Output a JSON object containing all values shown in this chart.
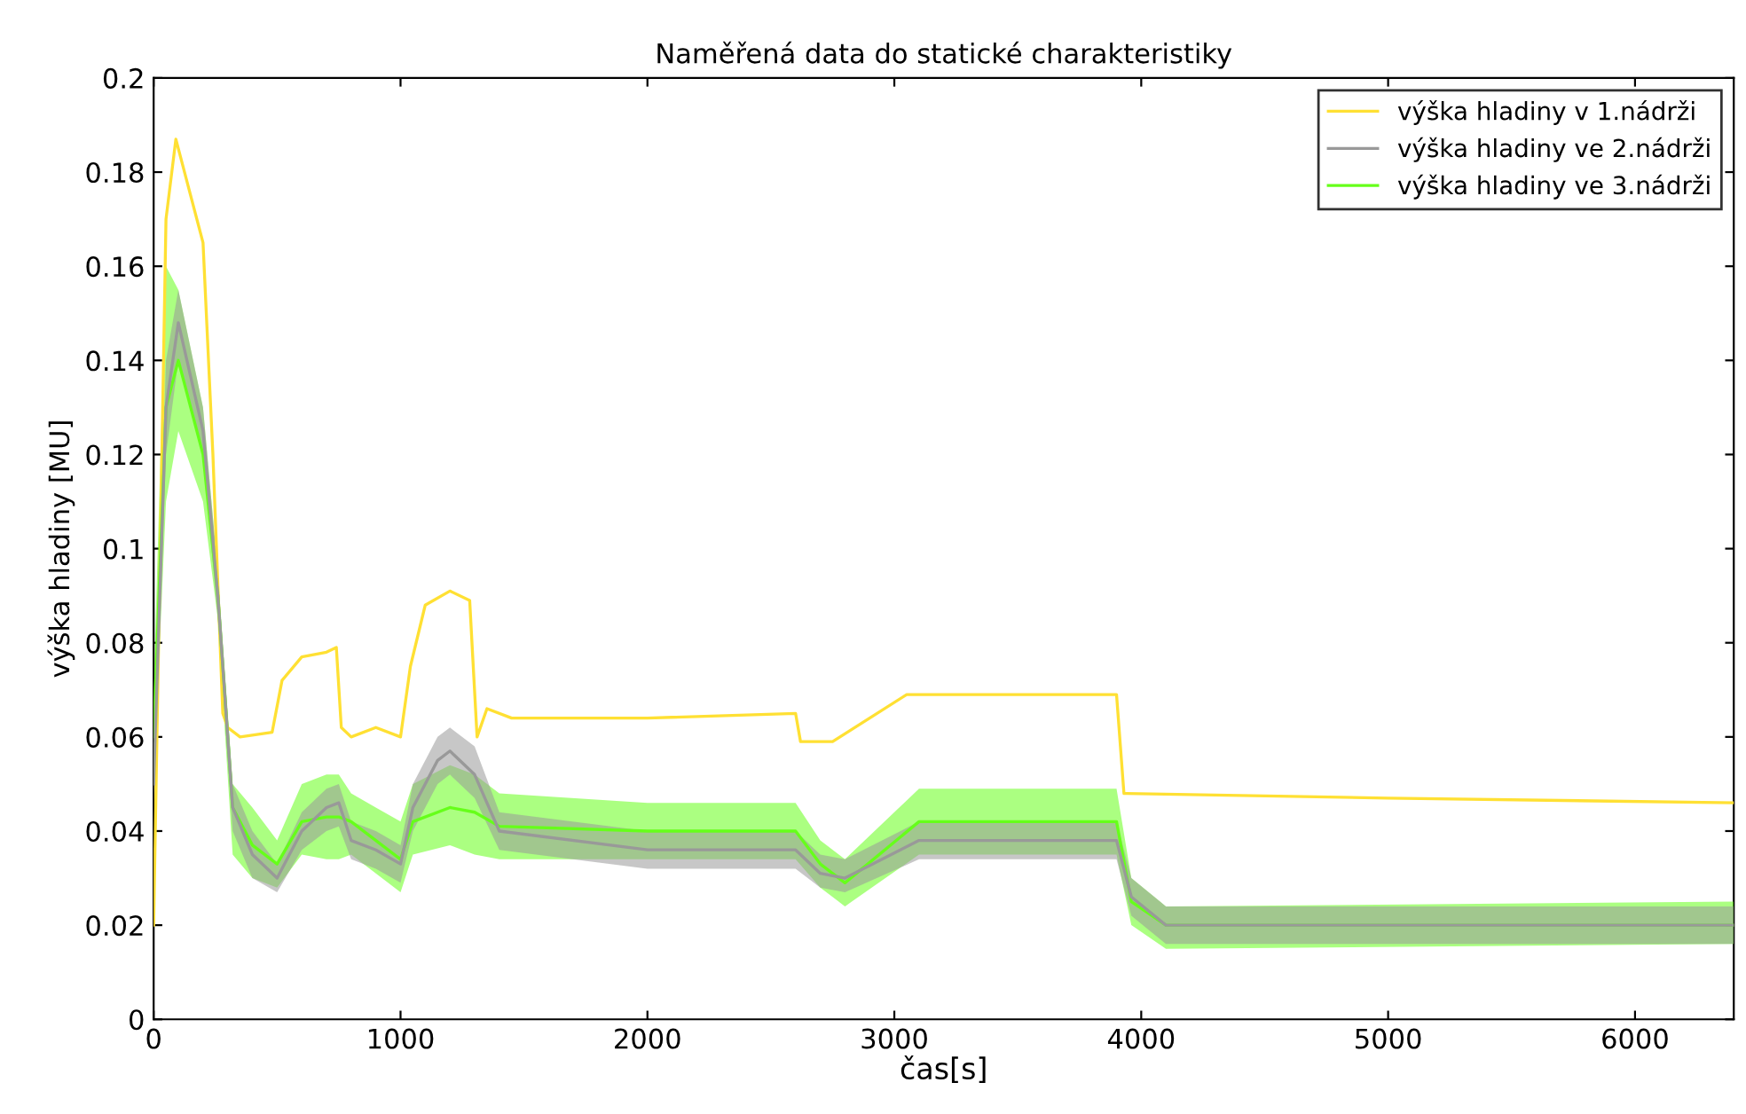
{
  "chart_data": {
    "type": "line",
    "title": "Naměřená data do statické charakteristiky",
    "xlabel": "čas[s]",
    "ylabel": "výška hladiny [MU]",
    "xlim": [
      0,
      6400
    ],
    "xticks": [
      0,
      1000,
      2000,
      3000,
      4000,
      5000,
      6000
    ],
    "ylim": [
      0,
      0.2
    ],
    "yticks": [
      0,
      0.02,
      0.04,
      0.06,
      0.08,
      0.1,
      0.12,
      0.14,
      0.16,
      0.18,
      0.2
    ],
    "grid": false,
    "legend": "top right",
    "marker": "none",
    "line_style": "solid",
    "series": [
      {
        "name": "výška hladiny v 1.nádrži",
        "color": "#ffe033",
        "x": [
          0,
          20,
          50,
          90,
          150,
          200,
          240,
          280,
          300,
          350,
          480,
          520,
          600,
          700,
          740,
          760,
          800,
          900,
          1000,
          1040,
          1100,
          1200,
          1280,
          1310,
          1350,
          1450,
          2000,
          2600,
          2620,
          2750,
          2900,
          3050,
          3900,
          3930,
          5000,
          6400
        ],
        "values": [
          0.02,
          0.08,
          0.17,
          0.187,
          0.175,
          0.165,
          0.12,
          0.065,
          0.062,
          0.06,
          0.061,
          0.072,
          0.077,
          0.078,
          0.079,
          0.062,
          0.06,
          0.062,
          0.06,
          0.075,
          0.088,
          0.091,
          0.089,
          0.06,
          0.066,
          0.064,
          0.064,
          0.065,
          0.059,
          0.059,
          0.064,
          0.069,
          0.069,
          0.048,
          0.047,
          0.046
        ]
      },
      {
        "name": "výška hladiny ve 2.nádrži",
        "color": "#999999",
        "x": [
          0,
          50,
          100,
          200,
          260,
          320,
          400,
          500,
          600,
          700,
          750,
          800,
          900,
          1000,
          1050,
          1150,
          1200,
          1300,
          1400,
          2000,
          2600,
          2700,
          2800,
          3100,
          3900,
          3960,
          4100,
          6400
        ],
        "values": [
          0.05,
          0.13,
          0.148,
          0.125,
          0.09,
          0.045,
          0.035,
          0.03,
          0.04,
          0.045,
          0.046,
          0.038,
          0.036,
          0.033,
          0.045,
          0.055,
          0.057,
          0.052,
          0.04,
          0.036,
          0.036,
          0.031,
          0.03,
          0.038,
          0.038,
          0.026,
          0.02,
          0.02
        ],
        "lower": [
          0.045,
          0.12,
          0.14,
          0.12,
          0.085,
          0.04,
          0.03,
          0.027,
          0.036,
          0.04,
          0.041,
          0.034,
          0.032,
          0.029,
          0.04,
          0.05,
          0.052,
          0.047,
          0.036,
          0.032,
          0.032,
          0.028,
          0.027,
          0.034,
          0.034,
          0.022,
          0.016,
          0.016
        ],
        "upper": [
          0.055,
          0.14,
          0.155,
          0.13,
          0.095,
          0.05,
          0.04,
          0.033,
          0.044,
          0.049,
          0.05,
          0.042,
          0.04,
          0.037,
          0.05,
          0.06,
          0.062,
          0.058,
          0.044,
          0.04,
          0.04,
          0.035,
          0.034,
          0.042,
          0.042,
          0.03,
          0.024,
          0.024
        ]
      },
      {
        "name": "výška hladiny ve 3.nádrži",
        "color": "#66ff1a",
        "x": [
          0,
          50,
          100,
          200,
          260,
          320,
          400,
          500,
          600,
          700,
          750,
          800,
          900,
          1000,
          1050,
          1200,
          1300,
          1400,
          2000,
          2600,
          2700,
          2800,
          3100,
          3900,
          3960,
          4100,
          6400
        ],
        "values": [
          0.06,
          0.13,
          0.14,
          0.12,
          0.09,
          0.045,
          0.037,
          0.033,
          0.042,
          0.043,
          0.043,
          0.042,
          0.038,
          0.034,
          0.042,
          0.045,
          0.044,
          0.041,
          0.04,
          0.04,
          0.033,
          0.029,
          0.042,
          0.042,
          0.025,
          0.02,
          0.02
        ],
        "lower": [
          0.05,
          0.11,
          0.125,
          0.11,
          0.085,
          0.035,
          0.03,
          0.028,
          0.035,
          0.034,
          0.034,
          0.035,
          0.031,
          0.027,
          0.035,
          0.037,
          0.035,
          0.034,
          0.034,
          0.034,
          0.028,
          0.024,
          0.035,
          0.035,
          0.02,
          0.015,
          0.016
        ],
        "upper": [
          0.07,
          0.16,
          0.155,
          0.13,
          0.095,
          0.05,
          0.045,
          0.038,
          0.05,
          0.052,
          0.052,
          0.048,
          0.045,
          0.042,
          0.05,
          0.054,
          0.052,
          0.048,
          0.046,
          0.046,
          0.038,
          0.034,
          0.049,
          0.049,
          0.03,
          0.024,
          0.025
        ]
      }
    ]
  }
}
